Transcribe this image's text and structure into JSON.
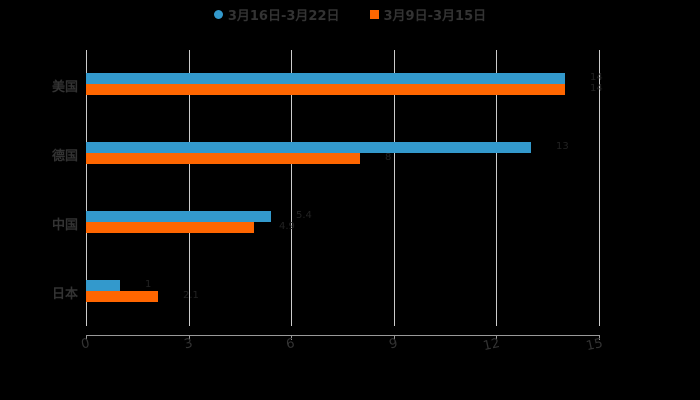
{
  "chart_data": {
    "type": "bar",
    "orientation": "horizontal",
    "title": "",
    "xlabel": "",
    "ylabel": "",
    "categories": [
      "美国",
      "德国",
      "中国",
      "日本"
    ],
    "series": [
      {
        "name": "3月16日-3月22日",
        "color": "#3399cc",
        "values": [
          14,
          13,
          5.4,
          1
        ]
      },
      {
        "name": "3月9日-3月15日",
        "color": "#ff6600",
        "values": [
          14,
          8,
          4.9,
          2.1
        ]
      }
    ],
    "xlim": [
      0,
      15
    ],
    "xticks": [
      "0",
      "3",
      "6",
      "9",
      "12",
      "15"
    ],
    "grid": true,
    "legend_position": "top"
  },
  "legend": [
    {
      "label": "3月16日-3月22日",
      "color": "#3399cc"
    },
    {
      "label": "3月9日-3月15日",
      "color": "#ff6600"
    }
  ]
}
